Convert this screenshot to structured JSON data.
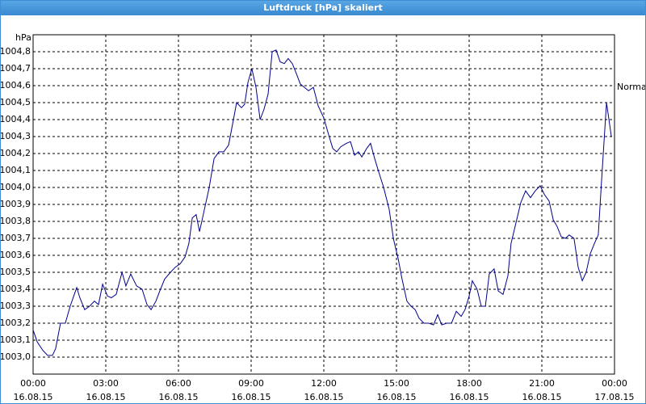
{
  "chart_data": {
    "type": "line",
    "title": "Luftdruck [hPa] skaliert",
    "y_label": "hPa",
    "x": [
      0,
      0.17,
      0.4,
      0.6,
      0.8,
      0.93,
      1.13,
      1.33,
      1.53,
      1.8,
      1.93,
      2.13,
      2.33,
      2.53,
      2.7,
      2.87,
      3.07,
      3.23,
      3.43,
      3.67,
      3.83,
      4.03,
      4.27,
      4.5,
      4.7,
      4.87,
      5.07,
      5.23,
      5.43,
      5.67,
      5.87,
      6.07,
      6.27,
      6.43,
      6.57,
      6.73,
      6.87,
      7.07,
      7.27,
      7.47,
      7.67,
      7.87,
      8.07,
      8.27,
      8.4,
      8.6,
      8.73,
      8.87,
      9.03,
      9.2,
      9.37,
      9.53,
      9.7,
      9.87,
      10.03,
      10.2,
      10.37,
      10.53,
      10.7,
      10.87,
      11.03,
      11.2,
      11.37,
      11.57,
      11.77,
      12,
      12.2,
      12.37,
      12.53,
      12.7,
      12.93,
      13.1,
      13.27,
      13.43,
      13.57,
      13.77,
      13.93,
      14.1,
      14.27,
      14.47,
      14.7,
      14.87,
      15.07,
      15.23,
      15.43,
      15.6,
      15.77,
      15.93,
      16.13,
      16.33,
      16.53,
      16.7,
      16.87,
      17.07,
      17.27,
      17.47,
      17.67,
      17.83,
      18,
      18.13,
      18.33,
      18.5,
      18.67,
      18.83,
      19.03,
      19.2,
      19.4,
      19.6,
      19.73,
      19.93,
      20.13,
      20.33,
      20.53,
      20.73,
      20.93,
      21.1,
      21.3,
      21.47,
      21.63,
      21.8,
      21.97,
      22.13,
      22.33,
      22.5,
      22.67,
      22.83,
      23,
      23.17,
      23.33,
      23.47,
      23.67,
      23.87
    ],
    "series": [
      {
        "name": "Normal",
        "color": "#00008b",
        "values": [
          1003.16,
          1003.09,
          1003.04,
          1003.01,
          1003.01,
          1003.05,
          1003.2,
          1003.2,
          1003.3,
          1003.41,
          1003.35,
          1003.28,
          1003.3,
          1003.33,
          1003.31,
          1003.43,
          1003.36,
          1003.35,
          1003.37,
          1003.5,
          1003.42,
          1003.49,
          1003.42,
          1003.4,
          1003.31,
          1003.28,
          1003.33,
          1003.39,
          1003.46,
          1003.5,
          1003.53,
          1003.55,
          1003.59,
          1003.67,
          1003.82,
          1003.84,
          1003.74,
          1003.87,
          1004.0,
          1004.17,
          1004.21,
          1004.21,
          1004.25,
          1004.4,
          1004.5,
          1004.47,
          1004.49,
          1004.62,
          1004.7,
          1004.59,
          1004.4,
          1004.46,
          1004.55,
          1004.8,
          1004.81,
          1004.74,
          1004.73,
          1004.76,
          1004.73,
          1004.67,
          1004.61,
          1004.59,
          1004.57,
          1004.59,
          1004.48,
          1004.41,
          1004.31,
          1004.23,
          1004.21,
          1004.24,
          1004.26,
          1004.27,
          1004.19,
          1004.21,
          1004.18,
          1004.23,
          1004.26,
          1004.17,
          1004.09,
          1004.0,
          1003.87,
          1003.7,
          1003.58,
          1003.46,
          1003.33,
          1003.3,
          1003.28,
          1003.23,
          1003.2,
          1003.2,
          1003.19,
          1003.25,
          1003.19,
          1003.2,
          1003.2,
          1003.27,
          1003.24,
          1003.28,
          1003.36,
          1003.45,
          1003.4,
          1003.3,
          1003.3,
          1003.49,
          1003.52,
          1003.39,
          1003.37,
          1003.48,
          1003.67,
          1003.79,
          1003.91,
          1003.98,
          1003.94,
          1003.98,
          1004.01,
          1003.96,
          1003.92,
          1003.81,
          1003.77,
          1003.71,
          1003.7,
          1003.72,
          1003.7,
          1003.53,
          1003.45,
          1003.5,
          1003.61,
          1003.67,
          1003.72,
          1004.05,
          1004.5,
          1004.3
        ]
      }
    ],
    "xlim": [
      0,
      24
    ],
    "xticks": [
      {
        "value": 0,
        "label": "00:00"
      },
      {
        "value": 3,
        "label": "03:00"
      },
      {
        "value": 6,
        "label": "06:00"
      },
      {
        "value": 9,
        "label": "09:00"
      },
      {
        "value": 12,
        "label": "12:00"
      },
      {
        "value": 15,
        "label": "15:00"
      },
      {
        "value": 18,
        "label": "18:00"
      },
      {
        "value": 21,
        "label": "21:00"
      },
      {
        "value": 24,
        "label": "00:00"
      }
    ],
    "xtick_dates": [
      "16.08.15",
      "16.08.15",
      "16.08.15",
      "16.08.15",
      "16.08.15",
      "16.08.15",
      "16.08.15",
      "16.08.15",
      "17.08.15"
    ],
    "ylim": [
      1002.9,
      1004.9
    ],
    "yticks": [
      {
        "value": 1003.0,
        "label": "1003,0"
      },
      {
        "value": 1003.1,
        "label": "1003,1"
      },
      {
        "value": 1003.2,
        "label": "1003,2"
      },
      {
        "value": 1003.3,
        "label": "1003,3"
      },
      {
        "value": 1003.4,
        "label": "1003,4"
      },
      {
        "value": 1003.5,
        "label": "1003,5"
      },
      {
        "value": 1003.6,
        "label": "1003,6"
      },
      {
        "value": 1003.7,
        "label": "1003,7"
      },
      {
        "value": 1003.8,
        "label": "1003,8"
      },
      {
        "value": 1003.9,
        "label": "1003,9"
      },
      {
        "value": 1004.0,
        "label": "1004,0"
      },
      {
        "value": 1004.1,
        "label": "1004,1"
      },
      {
        "value": 1004.2,
        "label": "1004,2"
      },
      {
        "value": 1004.3,
        "label": "1004,3"
      },
      {
        "value": 1004.4,
        "label": "1004,4"
      },
      {
        "value": 1004.5,
        "label": "1004,5"
      },
      {
        "value": 1004.6,
        "label": "1004,6"
      },
      {
        "value": 1004.7,
        "label": "1004,7"
      },
      {
        "value": 1004.8,
        "label": "1004,8"
      }
    ],
    "grid": true
  }
}
